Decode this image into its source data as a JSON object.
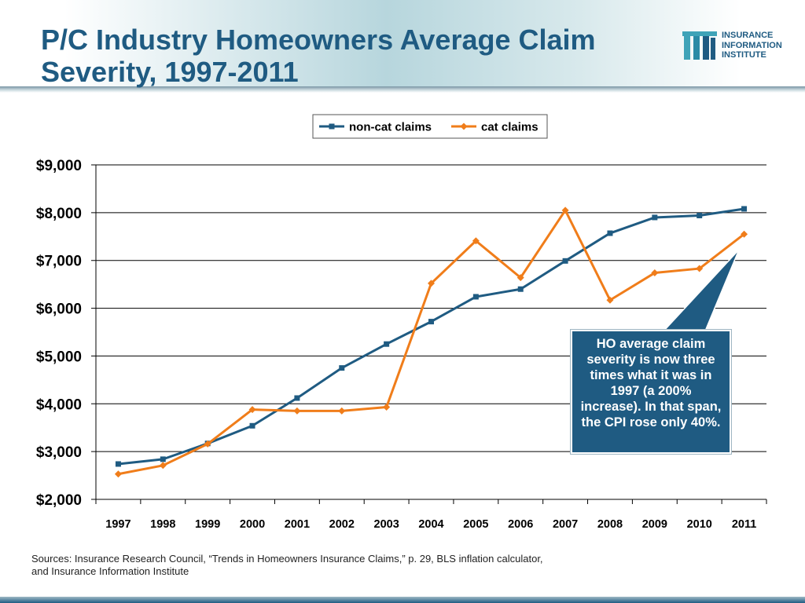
{
  "title_lines": [
    "P/C Industry Homeowners Average Claim",
    "Severity, 1997-2011"
  ],
  "logo": {
    "lines": [
      "INSURANCE",
      "INFORMATION",
      "INSTITUTE"
    ]
  },
  "callout": "HO average claim severity is now three times what it was in 1997 (a 200% increase). In that span, the CPI rose only 40%.",
  "sources": [
    "Sources: Insurance Research Council, “Trends in Homeowners Insurance Claims,” p. 29, BLS inflation calculator,",
    "and Insurance Information Institute"
  ],
  "colors": {
    "title": "#1f5b82",
    "noncat": "#1f5b82",
    "cat": "#f07d1a",
    "callout_bg": "#1f5b82"
  },
  "chart_data": {
    "type": "line",
    "x": [
      "1997",
      "1998",
      "1999",
      "2000",
      "2001",
      "2002",
      "2003",
      "2004",
      "2005",
      "2006",
      "2007",
      "2008",
      "2009",
      "2010",
      "2011"
    ],
    "ylim": [
      2000,
      9000
    ],
    "yticks": [
      2000,
      3000,
      4000,
      5000,
      6000,
      7000,
      8000,
      9000
    ],
    "ytick_labels": [
      "$2,000",
      "$3,000",
      "$4,000",
      "$5,000",
      "$6,000",
      "$7,000",
      "$8,000",
      "$9,000"
    ],
    "grid": true,
    "legend_position": "top-center",
    "series": [
      {
        "name": "non-cat claims",
        "color": "#1f5b82",
        "marker": "square",
        "values": [
          2740,
          2840,
          3170,
          3540,
          4120,
          4750,
          5250,
          5720,
          6240,
          6400,
          6990,
          7570,
          7900,
          7940,
          8080
        ]
      },
      {
        "name": "cat claims",
        "color": "#f07d1a",
        "marker": "diamond",
        "values": [
          2530,
          2710,
          3160,
          3880,
          3850,
          3850,
          3930,
          6520,
          7410,
          6640,
          8050,
          6170,
          6740,
          6830,
          7550
        ]
      }
    ]
  }
}
